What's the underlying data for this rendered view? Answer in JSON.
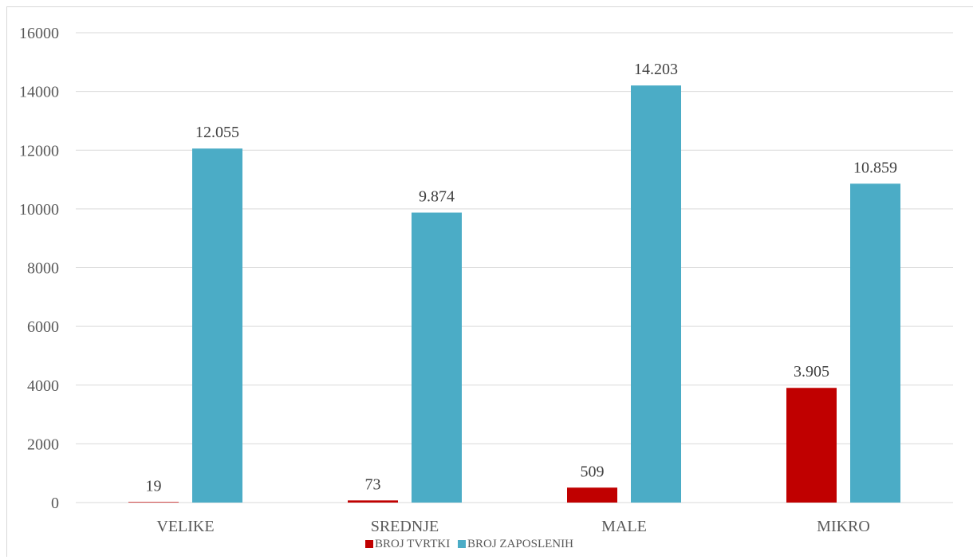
{
  "chart_data": {
    "type": "bar",
    "categories": [
      "VELIKE",
      "SREDNJE",
      "MALE",
      "MIKRO"
    ],
    "series": [
      {
        "name": "BROJ TVRTKI",
        "values": [
          19,
          73,
          509,
          3905
        ],
        "labels": [
          "19",
          "73",
          "509",
          "3.905"
        ],
        "color": "#C00000"
      },
      {
        "name": "BROJ ZAPOSLENIH",
        "values": [
          12055,
          9874,
          14203,
          10859
        ],
        "labels": [
          "12.055",
          "9.874",
          "14.203",
          "10.859"
        ],
        "color": "#4BACC6"
      }
    ],
    "ylim": [
      0,
      16000
    ],
    "yticks": [
      "0",
      "2000",
      "4000",
      "6000",
      "8000",
      "10000",
      "12000",
      "14000",
      "16000"
    ],
    "grid": true,
    "legend": "bottom",
    "title": "",
    "xlabel": "",
    "ylabel": ""
  }
}
